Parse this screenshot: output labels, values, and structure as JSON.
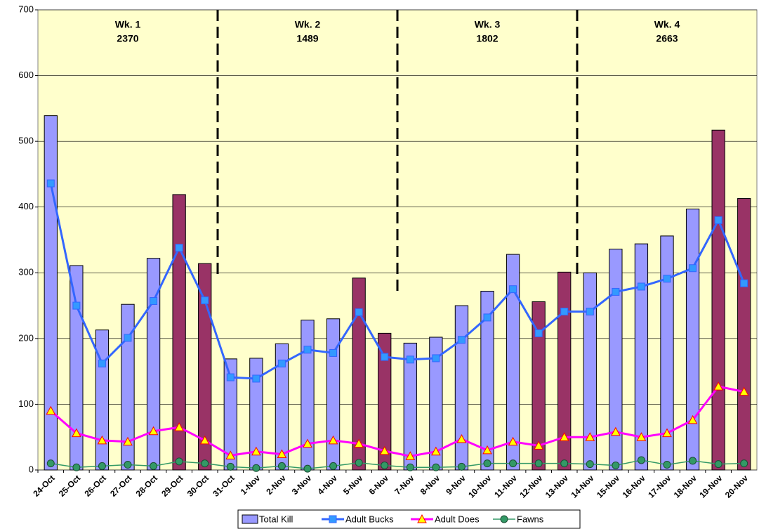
{
  "chart_data": {
    "type": "bar-line",
    "categories": [
      "24-Oct",
      "25-Oct",
      "26-Oct",
      "27-Oct",
      "28-Oct",
      "29-Oct",
      "30-Oct",
      "31-Oct",
      "1-Nov",
      "2-Nov",
      "3-Nov",
      "4-Nov",
      "5-Nov",
      "6-Nov",
      "7-Nov",
      "8-Nov",
      "9-Nov",
      "10-Nov",
      "11-Nov",
      "12-Nov",
      "13-Nov",
      "14-Nov",
      "15-Nov",
      "16-Nov",
      "17-Nov",
      "18-Nov",
      "19-Nov",
      "20-Nov"
    ],
    "series": [
      {
        "name": "Total Kill",
        "kind": "bar",
        "color": "#9999ff",
        "colors": [
          "#9999ff",
          "#9999ff",
          "#9999ff",
          "#9999ff",
          "#9999ff",
          "#993366",
          "#993366",
          "#9999ff",
          "#9999ff",
          "#9999ff",
          "#9999ff",
          "#9999ff",
          "#993366",
          "#993366",
          "#9999ff",
          "#9999ff",
          "#9999ff",
          "#9999ff",
          "#9999ff",
          "#993366",
          "#993366",
          "#9999ff",
          "#9999ff",
          "#9999ff",
          "#9999ff",
          "#9999ff",
          "#993366",
          "#993366"
        ],
        "values": [
          539,
          311,
          213,
          252,
          322,
          419,
          314,
          169,
          170,
          192,
          228,
          230,
          292,
          208,
          193,
          202,
          250,
          272,
          328,
          256,
          301,
          300,
          336,
          344,
          356,
          397,
          517,
          413
        ]
      },
      {
        "name": "Adult Bucks",
        "kind": "line",
        "color": "#3366ff",
        "marker": "square",
        "marker_color": "#3399ff",
        "values": [
          436,
          250,
          162,
          201,
          257,
          338,
          258,
          141,
          139,
          162,
          183,
          178,
          240,
          172,
          168,
          170,
          198,
          232,
          275,
          208,
          241,
          241,
          271,
          279,
          291,
          307,
          380,
          284
        ]
      },
      {
        "name": "Adult Does",
        "kind": "line",
        "color": "#ff00ff",
        "marker": "triangle",
        "marker_color": "#ffff00",
        "values": [
          90,
          56,
          45,
          43,
          59,
          65,
          45,
          22,
          28,
          24,
          40,
          45,
          40,
          29,
          21,
          28,
          47,
          30,
          43,
          37,
          50,
          50,
          58,
          50,
          56,
          76,
          127,
          119
        ]
      },
      {
        "name": "Fawns",
        "kind": "line",
        "color": "#339966",
        "marker": "circle",
        "marker_color": "#339966",
        "values": [
          10,
          4,
          6,
          8,
          6,
          13,
          10,
          5,
          3,
          6,
          2,
          6,
          11,
          7,
          4,
          4,
          5,
          10,
          10,
          10,
          10,
          9,
          7,
          15,
          8,
          14,
          9,
          10
        ]
      }
    ],
    "weeks": [
      {
        "label": "Wk. 1",
        "total": 2370
      },
      {
        "label": "Wk. 2",
        "total": 1489
      },
      {
        "label": "Wk. 3",
        "total": 1802
      },
      {
        "label": "Wk. 4",
        "total": 2663
      }
    ],
    "ylim": [
      0,
      700
    ],
    "yticks": [
      0,
      100,
      200,
      300,
      400,
      500,
      600,
      700
    ],
    "grid": true,
    "legend": "bottom"
  }
}
